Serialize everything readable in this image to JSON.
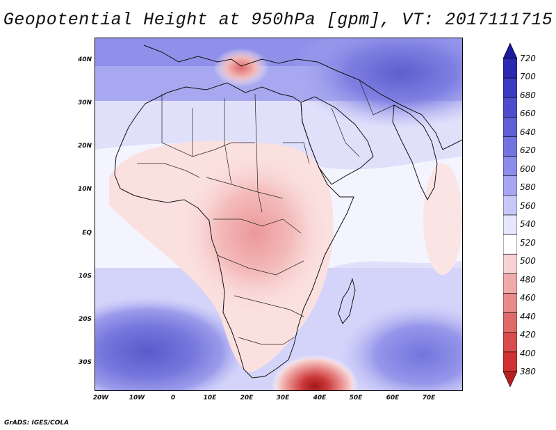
{
  "title": "Geopotential Height at 950hPa [gpm], VT: 2017111715",
  "footer": "GrADS: IGES/COLA",
  "map": {
    "lat_labels": [
      "40N",
      "30N",
      "20N",
      "10N",
      "EQ",
      "10S",
      "20S",
      "30S"
    ],
    "lon_labels": [
      "20W",
      "10W",
      "0",
      "10E",
      "20E",
      "30E",
      "40E",
      "50E",
      "60E",
      "70E"
    ],
    "features": [
      "africa-landmass",
      "madagascar",
      "arabian-peninsula",
      "mediterranean-sea",
      "red-sea",
      "indian-ocean",
      "atlantic-ocean"
    ],
    "notable_values": {
      "low_center_mediterranean": "below 500",
      "low_center_south_of_africa": "below 400",
      "high_centers_south_atlantic_and_indian_ocean": "above 620"
    }
  },
  "colorbar": {
    "levels": [
      "720",
      "700",
      "680",
      "660",
      "640",
      "620",
      "600",
      "580",
      "560",
      "540",
      "520",
      "500",
      "480",
      "460",
      "440",
      "420",
      "400",
      "380"
    ],
    "colors": [
      "#1a1a9c",
      "#2a2ab0",
      "#3b3bc2",
      "#4d4dcc",
      "#6060d6",
      "#7474e0",
      "#8c8ceb",
      "#a6a6f2",
      "#c8c8f8",
      "#e6e6fc",
      "#ffffff",
      "#f8d2d2",
      "#f0aaaa",
      "#e88a8a",
      "#e06a6a",
      "#d84c4c",
      "#d03232",
      "#b82020"
    ]
  }
}
